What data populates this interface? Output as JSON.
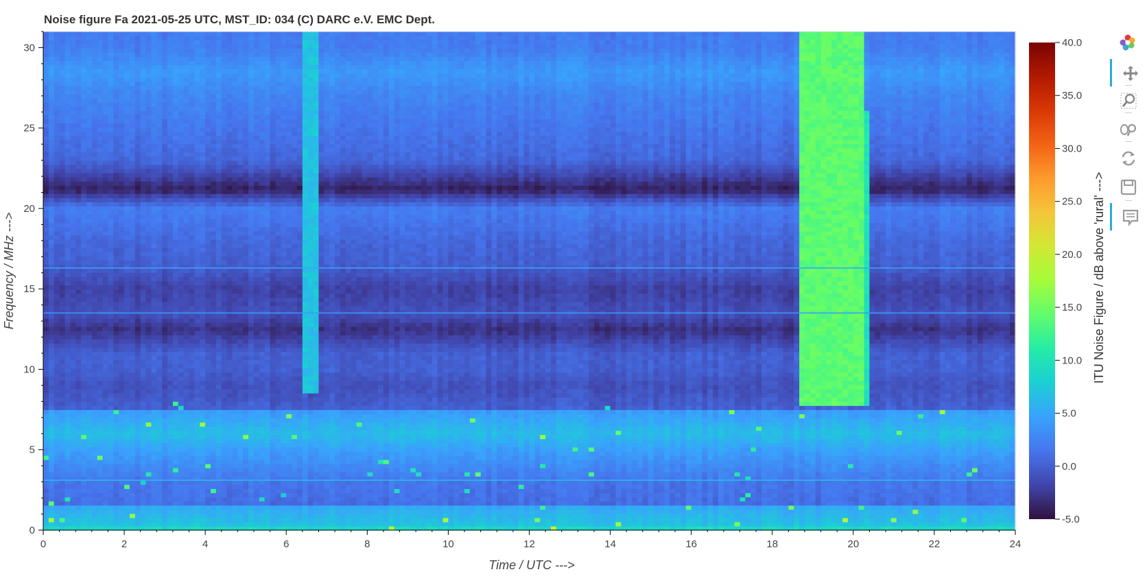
{
  "chart_data": {
    "type": "heatmap",
    "title": "Noise figure Fa  2021-05-25  UTC,  MST_ID:  034   (C) DARC e.V. EMC Dept.",
    "xlabel": "Time / UTC --->",
    "ylabel": "Frequency / MHz --->",
    "xlim": [
      0,
      24
    ],
    "ylim": [
      0,
      31
    ],
    "x_ticks": [
      "0",
      "2",
      "4",
      "6",
      "8",
      "10",
      "12",
      "14",
      "16",
      "18",
      "20",
      "22",
      "24"
    ],
    "y_ticks": [
      "0",
      "5",
      "10",
      "15",
      "20",
      "25",
      "30"
    ],
    "colorbar": {
      "label": "ITU Noise Figure / dB above 'rural' --->",
      "range": [
        -5,
        40
      ],
      "ticks": [
        "40.0",
        "35.0",
        "30.0",
        "25.0",
        "20.0",
        "15.0",
        "10.0",
        "5.0",
        "0.0",
        "-5.0"
      ],
      "colormap": [
        "#30123b",
        "#4145ab",
        "#4675ed",
        "#39a2fc",
        "#1bcfd4",
        "#24eca6",
        "#61fc6c",
        "#a4fc3b",
        "#d1e834",
        "#f3c63a",
        "#fe9b2d",
        "#f36315",
        "#d93806",
        "#b11901",
        "#7a0403"
      ]
    },
    "baseline_profile_by_frequency": [
      {
        "f": 0.0,
        "v": 10
      },
      {
        "f": 0.3,
        "v": 7
      },
      {
        "f": 1.5,
        "v": 5
      },
      {
        "f": 1.6,
        "v": 1
      },
      {
        "f": 3.0,
        "v": 1.5
      },
      {
        "f": 4.0,
        "v": 3
      },
      {
        "f": 5.0,
        "v": 4.5
      },
      {
        "f": 6.0,
        "v": 6.5
      },
      {
        "f": 7.5,
        "v": 4
      },
      {
        "f": 7.6,
        "v": 0
      },
      {
        "f": 9.0,
        "v": -1
      },
      {
        "f": 10.0,
        "v": 0
      },
      {
        "f": 11.0,
        "v": 0
      },
      {
        "f": 12.5,
        "v": -3
      },
      {
        "f": 13.5,
        "v": -1
      },
      {
        "f": 15.0,
        "v": -2
      },
      {
        "f": 16.5,
        "v": 0
      },
      {
        "f": 18.0,
        "v": 0.5
      },
      {
        "f": 20.0,
        "v": 2
      },
      {
        "f": 21.2,
        "v": -4
      },
      {
        "f": 23.0,
        "v": 0.5
      },
      {
        "f": 25.0,
        "v": 1.5
      },
      {
        "f": 27.0,
        "v": 2.5
      },
      {
        "f": 28.5,
        "v": 4
      },
      {
        "f": 30.0,
        "v": 2
      },
      {
        "f": 31.0,
        "v": 2
      }
    ],
    "broadband_events": [
      {
        "t_start": 6.4,
        "t_end": 6.8,
        "f_min": 8.5,
        "f_max": 31,
        "level_db": 7
      },
      {
        "t_start": 18.6,
        "t_end": 20.25,
        "f_min": 7.5,
        "f_max": 31,
        "level_db": 14
      },
      {
        "t_start": 20.25,
        "t_end": 20.4,
        "f_min": 7.5,
        "f_max": 26,
        "level_db": 10
      }
    ],
    "narrowband_lines_mhz": [
      3.1,
      13.5,
      16.3
    ]
  },
  "toolbar": {
    "items": [
      "bokeh-logo",
      "pan",
      "box-zoom",
      "wheel-zoom",
      "reset",
      "save",
      "hover"
    ]
  }
}
